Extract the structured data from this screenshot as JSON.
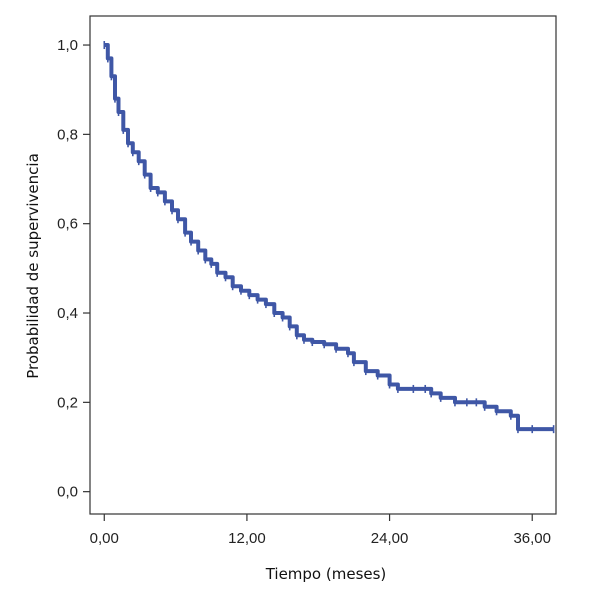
{
  "chart_data": {
    "type": "line",
    "title": "",
    "xlabel": "Tiempo (meses)",
    "ylabel": "Probabilidad de supervivencia",
    "xlim": [
      -1.2,
      38.0
    ],
    "ylim": [
      -0.05,
      1.065
    ],
    "x_ticks": [
      0,
      12,
      24,
      36
    ],
    "x_tick_labels": [
      "0,00",
      "12,00",
      "24,00",
      "36,00"
    ],
    "y_ticks": [
      0.0,
      0.2,
      0.4,
      0.6,
      0.8,
      1.0
    ],
    "y_tick_labels": [
      "0,0",
      "0,2",
      "0,4",
      "0,6",
      "0,8",
      "1,0"
    ],
    "grid": false,
    "line_color": "#3f57a6",
    "series": [
      {
        "name": "",
        "step": true,
        "x": [
          0,
          0.3,
          0.6,
          0.9,
          1.2,
          1.6,
          2.0,
          2.4,
          2.9,
          3.4,
          3.9,
          4.5,
          5.1,
          5.7,
          6.2,
          6.8,
          7.3,
          7.9,
          8.5,
          9.0,
          9.5,
          10.2,
          10.8,
          11.5,
          12.2,
          12.9,
          13.6,
          14.3,
          15.0,
          15.6,
          16.2,
          16.8,
          17.5,
          18.5,
          19.5,
          20.5,
          21.0,
          22.0,
          23.0,
          24.0,
          24.7,
          26.0,
          27.0,
          27.5,
          28.3,
          29.5,
          30.5,
          31.3,
          32.0,
          33.0,
          34.2,
          34.8,
          36.0,
          37.8
        ],
        "y": [
          1.0,
          0.97,
          0.93,
          0.88,
          0.85,
          0.81,
          0.78,
          0.76,
          0.74,
          0.71,
          0.68,
          0.67,
          0.65,
          0.63,
          0.61,
          0.58,
          0.56,
          0.54,
          0.52,
          0.51,
          0.49,
          0.48,
          0.46,
          0.45,
          0.44,
          0.43,
          0.42,
          0.4,
          0.39,
          0.37,
          0.35,
          0.34,
          0.335,
          0.33,
          0.32,
          0.31,
          0.29,
          0.27,
          0.26,
          0.24,
          0.23,
          0.23,
          0.23,
          0.22,
          0.21,
          0.2,
          0.2,
          0.2,
          0.19,
          0.18,
          0.17,
          0.14,
          0.14,
          0.14
        ]
      }
    ]
  }
}
